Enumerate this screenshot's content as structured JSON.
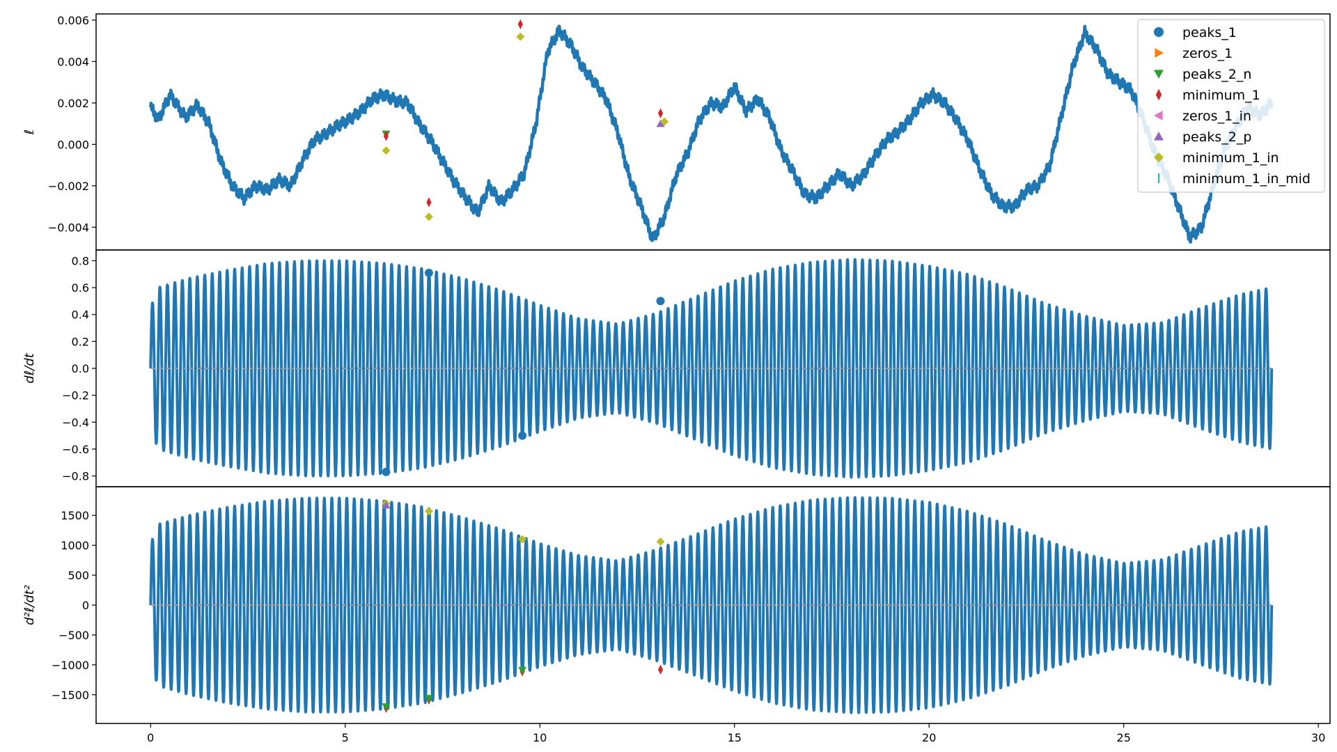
{
  "chart_data": {
    "type": "line",
    "x_ticks": [
      0,
      5,
      10,
      15,
      20,
      25,
      30
    ],
    "xlim": [
      -1.4,
      30.3
    ],
    "x_range": [
      0,
      28.8
    ],
    "legend": {
      "placement": "top-right",
      "entries": [
        {
          "label": "peaks_1",
          "marker": "circle",
          "color": "#1f77b4"
        },
        {
          "label": "zeros_1",
          "marker": "triangle-right",
          "color": "#ff7f0e"
        },
        {
          "label": "peaks_2_n",
          "marker": "triangle-down",
          "color": "#2ca02c"
        },
        {
          "label": "minimum_1",
          "marker": "thin-diamond",
          "color": "#d62728"
        },
        {
          "label": "zeros_1_in",
          "marker": "triangle-left",
          "color": "#e377c2"
        },
        {
          "label": "peaks_2_p",
          "marker": "triangle-up",
          "color": "#9467bd"
        },
        {
          "label": "minimum_1_in",
          "marker": "diamond",
          "color": "#bcbd22"
        },
        {
          "label": "minimum_1_in_mid",
          "marker": "tick",
          "color": "#17becf"
        }
      ]
    },
    "panels": [
      {
        "id": "top",
        "ylabel": "ℓ",
        "ylim": [
          -0.0051,
          0.0063
        ],
        "y_ticks": [
          0.006,
          0.004,
          0.002,
          0.0,
          -0.002,
          -0.004
        ],
        "y_tick_labels": [
          "0.006",
          "0.004",
          "0.002",
          "0.000",
          "−0.002",
          "−0.004"
        ],
        "series_color": "#1f77b4",
        "curve": {
          "x": [
            0,
            0.2,
            0.5,
            0.9,
            1.2,
            1.5,
            1.8,
            2.1,
            2.4,
            2.7,
            3.0,
            3.3,
            3.6,
            3.9,
            4.2,
            4.5,
            4.8,
            5.1,
            5.4,
            5.7,
            6.0,
            6.3,
            6.6,
            6.9,
            7.2,
            7.5,
            7.8,
            8.1,
            8.4,
            8.7,
            9.0,
            9.3,
            9.6,
            9.9,
            10.2,
            10.5,
            10.8,
            11.1,
            11.4,
            11.7,
            12.0,
            12.3,
            12.6,
            12.9,
            13.2,
            13.5,
            13.8,
            14.1,
            14.4,
            14.7,
            15.0,
            15.3,
            15.6,
            15.9,
            16.2,
            16.5,
            16.8,
            17.1,
            17.4,
            17.7,
            18.0,
            18.3,
            18.6,
            18.9,
            19.2,
            19.5,
            19.8,
            20.1,
            20.4,
            20.7,
            21.0,
            21.3,
            21.6,
            21.9,
            22.2,
            22.5,
            22.8,
            23.1,
            23.4,
            23.7,
            24.0,
            24.3,
            24.6,
            24.9,
            25.2,
            25.5,
            25.8,
            26.1,
            26.4,
            26.7,
            27.0,
            27.3,
            27.6,
            27.9,
            28.2,
            28.5,
            28.8
          ],
          "y": [
            0.0018,
            0.0012,
            0.0024,
            0.0013,
            0.0019,
            0.001,
            -0.0008,
            -0.002,
            -0.0026,
            -0.002,
            -0.0022,
            -0.0017,
            -0.002,
            -0.0008,
            0.0002,
            0.0005,
            0.0009,
            0.0012,
            0.0016,
            0.0022,
            0.0024,
            0.0021,
            0.002,
            0.001,
            0.0002,
            -0.0008,
            -0.0018,
            -0.0026,
            -0.0033,
            -0.002,
            -0.0028,
            -0.0022,
            -0.0014,
            0.001,
            0.0045,
            0.0055,
            0.0048,
            0.0037,
            0.003,
            0.0022,
            0.0006,
            -0.0016,
            -0.003,
            -0.0046,
            -0.0035,
            -0.0015,
            -0.0004,
            0.0012,
            0.002,
            0.0018,
            0.0028,
            0.0016,
            0.0022,
            0.0013,
            -0.0003,
            -0.0013,
            -0.0024,
            -0.0026,
            -0.002,
            -0.0014,
            -0.002,
            -0.0015,
            -0.0006,
            0.0002,
            0.0006,
            0.0012,
            0.002,
            0.0024,
            0.002,
            0.0012,
            0.0002,
            -0.0012,
            -0.0024,
            -0.003,
            -0.003,
            -0.0022,
            -0.002,
            -0.001,
            0.0014,
            0.0038,
            0.0054,
            0.0046,
            0.0034,
            0.003,
            0.0026,
            0.0012,
            -0.0004,
            -0.0015,
            -0.003,
            -0.0045,
            -0.004,
            -0.002,
            -0.0002,
            0.0009,
            0.0018,
            0.0014,
            0.002
          ]
        },
        "markers": [
          {
            "x": 6.05,
            "y": 0.0005,
            "marker": "triangle-down",
            "color": "#2ca02c"
          },
          {
            "x": 6.05,
            "y": 0.0004,
            "marker": "thin-diamond",
            "color": "#d62728"
          },
          {
            "x": 6.05,
            "y": -0.0003,
            "marker": "diamond",
            "color": "#bcbd22"
          },
          {
            "x": 7.15,
            "y": -0.0028,
            "marker": "thin-diamond",
            "color": "#d62728"
          },
          {
            "x": 7.15,
            "y": -0.0035,
            "marker": "diamond",
            "color": "#bcbd22"
          },
          {
            "x": 9.5,
            "y": 0.0058,
            "marker": "thin-diamond",
            "color": "#d62728"
          },
          {
            "x": 9.5,
            "y": 0.0052,
            "marker": "diamond",
            "color": "#bcbd22"
          },
          {
            "x": 13.1,
            "y": 0.0015,
            "marker": "thin-diamond",
            "color": "#d62728"
          },
          {
            "x": 13.1,
            "y": 0.001,
            "marker": "triangle-up",
            "color": "#9467bd"
          },
          {
            "x": 13.2,
            "y": 0.0011,
            "marker": "diamond",
            "color": "#bcbd22"
          }
        ]
      },
      {
        "id": "middle",
        "ylabel": "dℓ/dt",
        "ylim": [
          -0.88,
          0.88
        ],
        "y_ticks": [
          0.8,
          0.6,
          0.4,
          0.2,
          0.0,
          -0.2,
          -0.4,
          -0.6,
          -0.8
        ],
        "y_tick_labels": [
          "0.8",
          "0.6",
          "0.4",
          "0.2",
          "0.0",
          "−0.2",
          "−0.4",
          "−0.6",
          "−0.8"
        ],
        "series_color": "#1f77b4",
        "oscillation": {
          "cycles": 150,
          "envelope_x": [
            0,
            0.2,
            1,
            2,
            3,
            4,
            5,
            6,
            7,
            8,
            9,
            10,
            11,
            12,
            13,
            14,
            15,
            16,
            17,
            18,
            19,
            20,
            21,
            22,
            23,
            24,
            25,
            26,
            27,
            28,
            28.8
          ],
          "envelope_y": [
            0.45,
            0.6,
            0.67,
            0.73,
            0.78,
            0.8,
            0.8,
            0.78,
            0.74,
            0.67,
            0.58,
            0.47,
            0.37,
            0.33,
            0.41,
            0.53,
            0.65,
            0.74,
            0.79,
            0.81,
            0.8,
            0.76,
            0.7,
            0.6,
            0.48,
            0.39,
            0.32,
            0.34,
            0.45,
            0.55,
            0.6
          ]
        },
        "dashed_zero_line": true,
        "markers": [
          {
            "x": 6.05,
            "y": -0.77,
            "marker": "circle",
            "color": "#1f77b4"
          },
          {
            "x": 7.15,
            "y": 0.71,
            "marker": "circle",
            "color": "#1f77b4"
          },
          {
            "x": 9.55,
            "y": -0.5,
            "marker": "circle",
            "color": "#1f77b4"
          },
          {
            "x": 13.1,
            "y": 0.5,
            "marker": "circle",
            "color": "#1f77b4"
          }
        ]
      },
      {
        "id": "bottom",
        "ylabel": "d²ℓ/dt²",
        "ylim": [
          -1980,
          1980
        ],
        "y_ticks": [
          1500,
          1000,
          500,
          0,
          -500,
          -1000,
          -1500
        ],
        "y_tick_labels": [
          "1500",
          "1000",
          "500",
          "0",
          "−500",
          "−1000",
          "−1500"
        ],
        "series_color": "#1f77b4",
        "oscillation": {
          "cycles": 150,
          "envelope_x": [
            0,
            0.2,
            1,
            2,
            3,
            4,
            5,
            6,
            7,
            8,
            9,
            10,
            11,
            12,
            13,
            14,
            15,
            16,
            17,
            18,
            19,
            20,
            21,
            22,
            23,
            24,
            25,
            26,
            27,
            28,
            28.8
          ],
          "envelope_y": [
            1020,
            1350,
            1500,
            1640,
            1740,
            1790,
            1790,
            1740,
            1640,
            1470,
            1270,
            1030,
            830,
            740,
            930,
            1180,
            1440,
            1640,
            1760,
            1800,
            1790,
            1720,
            1570,
            1350,
            1080,
            850,
            700,
            760,
            1000,
            1230,
            1330
          ]
        },
        "dashed_zero_line": true,
        "markers": [
          {
            "x": 6.05,
            "y": 1700,
            "marker": "diamond",
            "color": "#bcbd22"
          },
          {
            "x": 6.05,
            "y": 1670,
            "marker": "triangle-up",
            "color": "#9467bd"
          },
          {
            "x": 6.05,
            "y": -1720,
            "marker": "thin-diamond",
            "color": "#d62728"
          },
          {
            "x": 6.05,
            "y": -1700,
            "marker": "triangle-down",
            "color": "#2ca02c"
          },
          {
            "x": 7.15,
            "y": 1570,
            "marker": "diamond",
            "color": "#bcbd22"
          },
          {
            "x": 7.15,
            "y": -1580,
            "marker": "thin-diamond",
            "color": "#d62728"
          },
          {
            "x": 7.15,
            "y": -1560,
            "marker": "triangle-down",
            "color": "#2ca02c"
          },
          {
            "x": 9.55,
            "y": 1100,
            "marker": "diamond",
            "color": "#bcbd22"
          },
          {
            "x": 9.55,
            "y": -1110,
            "marker": "thin-diamond",
            "color": "#d62728"
          },
          {
            "x": 9.55,
            "y": -1090,
            "marker": "triangle-down",
            "color": "#2ca02c"
          },
          {
            "x": 13.1,
            "y": 1060,
            "marker": "diamond",
            "color": "#bcbd22"
          },
          {
            "x": 13.1,
            "y": -1080,
            "marker": "thin-diamond",
            "color": "#d62728"
          }
        ]
      }
    ]
  }
}
